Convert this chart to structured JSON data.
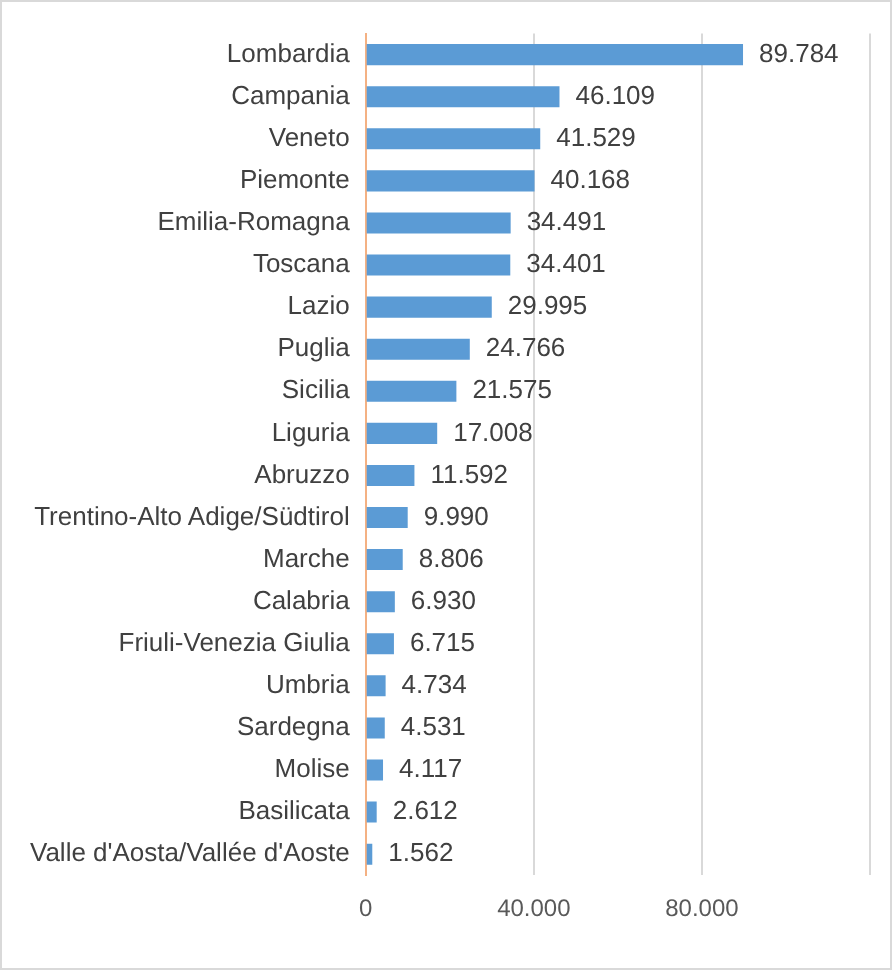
{
  "chart_data": {
    "type": "bar",
    "orientation": "horizontal",
    "categories": [
      "Lombardia",
      "Campania",
      "Veneto",
      "Piemonte",
      "Emilia-Romagna",
      "Toscana",
      "Lazio",
      "Puglia",
      "Sicilia",
      "Liguria",
      "Abruzzo",
      "Trentino-Alto Adige/Südtirol",
      "Marche",
      "Calabria",
      "Friuli-Venezia Giulia",
      "Umbria",
      "Sardegna",
      "Molise",
      "Basilicata",
      "Valle d'Aosta/Vallée d'Aoste"
    ],
    "values": [
      89784,
      46109,
      41529,
      40168,
      34491,
      34401,
      29995,
      24766,
      21575,
      17008,
      11592,
      9990,
      8806,
      6930,
      6715,
      4734,
      4531,
      4117,
      2612,
      1562
    ],
    "value_labels": [
      "89.784",
      "46.109",
      "41.529",
      "40.168",
      "34.491",
      "34.401",
      "29.995",
      "24.766",
      "21.575",
      "17.008",
      "11.592",
      "9.990",
      "8.806",
      "6.930",
      "6.715",
      "4.734",
      "4.531",
      "4.117",
      "2.612",
      "1.562"
    ],
    "color": "#5b9bd5",
    "xlim": [
      0,
      120000
    ],
    "xticks": [
      0,
      {
        "value": 40000,
        "label": "40.000"
      },
      {
        "value": 80000,
        "label": "80.000"
      },
      {
        "value": 120000,
        "label": null
      }
    ],
    "grid": "x"
  }
}
